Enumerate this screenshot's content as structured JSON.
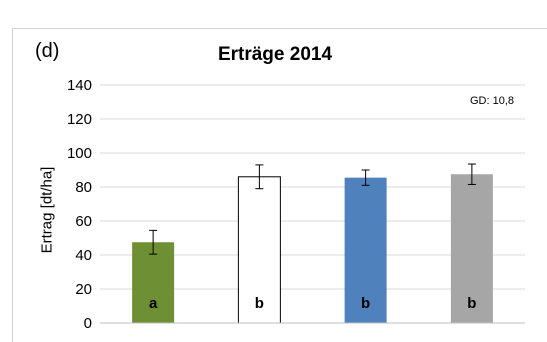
{
  "panel_label": "(d)",
  "gd_note": "GD: 10,8",
  "chart_data": {
    "type": "bar",
    "title": "Erträge 2014",
    "xlabel": "",
    "ylabel": "Ertrag [dt/ha]",
    "ylim": [
      0,
      140
    ],
    "yticks": [
      0,
      20,
      40,
      60,
      80,
      100,
      120,
      140
    ],
    "grid": true,
    "categories": [
      "",
      "",
      "",
      ""
    ],
    "values": [
      47.5,
      86,
      85.5,
      87.5
    ],
    "errors": [
      7,
      7,
      4.5,
      6
    ],
    "significance_letters": [
      "a",
      "b",
      "b",
      "b"
    ],
    "colors": [
      "#6f8f35",
      "#ffffff",
      "#4f81bd",
      "#a6a6a6"
    ],
    "letter_colors": [
      "#000000",
      "#000000",
      "#000000",
      "#000000"
    ]
  }
}
